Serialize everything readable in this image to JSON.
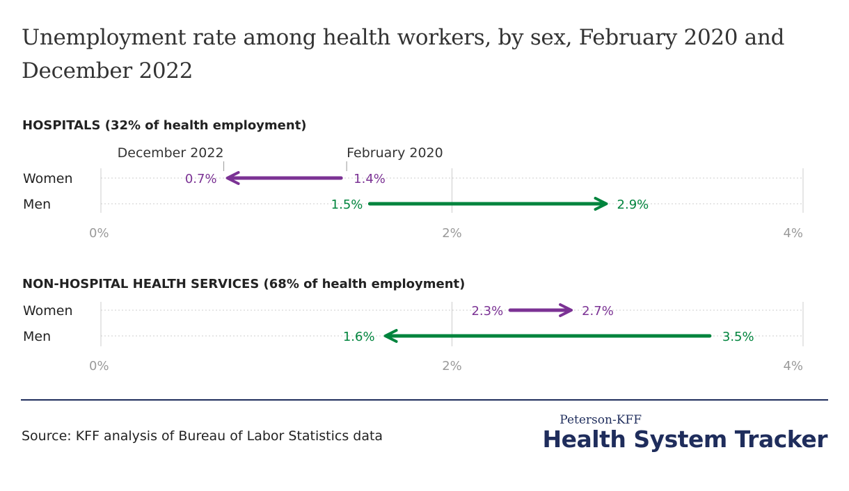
{
  "title": "Unemployment rate among health workers, by sex, February 2020 and December 2022",
  "source": "Source: KFF analysis of Bureau of Labor Statistics data",
  "logo": {
    "top": "Peterson-KFF",
    "main": "Health System Tracker"
  },
  "colors": {
    "women": "#7b3294",
    "men": "#00843d",
    "grid": "#cccccc",
    "tick": "#9a9a9a",
    "divider": "#1f2d5c"
  },
  "chart_data": [
    {
      "type": "dumbbell",
      "title": "HOSPITALS (32% of health employment)",
      "annotations": {
        "end_label": "December 2022",
        "start_label": "February 2020"
      },
      "x_ticks": [
        "0%",
        "2%",
        "4%"
      ],
      "xlim": [
        0,
        4
      ],
      "rows": [
        {
          "label": "Women",
          "series": "women",
          "feb_2020": 1.4,
          "dec_2022": 0.7,
          "feb_label": "1.4%",
          "dec_label": "0.7%"
        },
        {
          "label": "Men",
          "series": "men",
          "feb_2020": 1.5,
          "dec_2022": 2.9,
          "feb_label": "1.5%",
          "dec_label": "2.9%"
        }
      ]
    },
    {
      "type": "dumbbell",
      "title": "NON-HOSPITAL HEALTH SERVICES (68% of health employment)",
      "x_ticks": [
        "0%",
        "2%",
        "4%"
      ],
      "xlim": [
        0,
        4
      ],
      "rows": [
        {
          "label": "Women",
          "series": "women",
          "feb_2020": 2.3,
          "dec_2022": 2.7,
          "feb_label": "2.3%",
          "dec_label": "2.7%"
        },
        {
          "label": "Men",
          "series": "men",
          "feb_2020": 3.5,
          "dec_2022": 1.6,
          "feb_label": "3.5%",
          "dec_label": "1.6%"
        }
      ]
    }
  ]
}
